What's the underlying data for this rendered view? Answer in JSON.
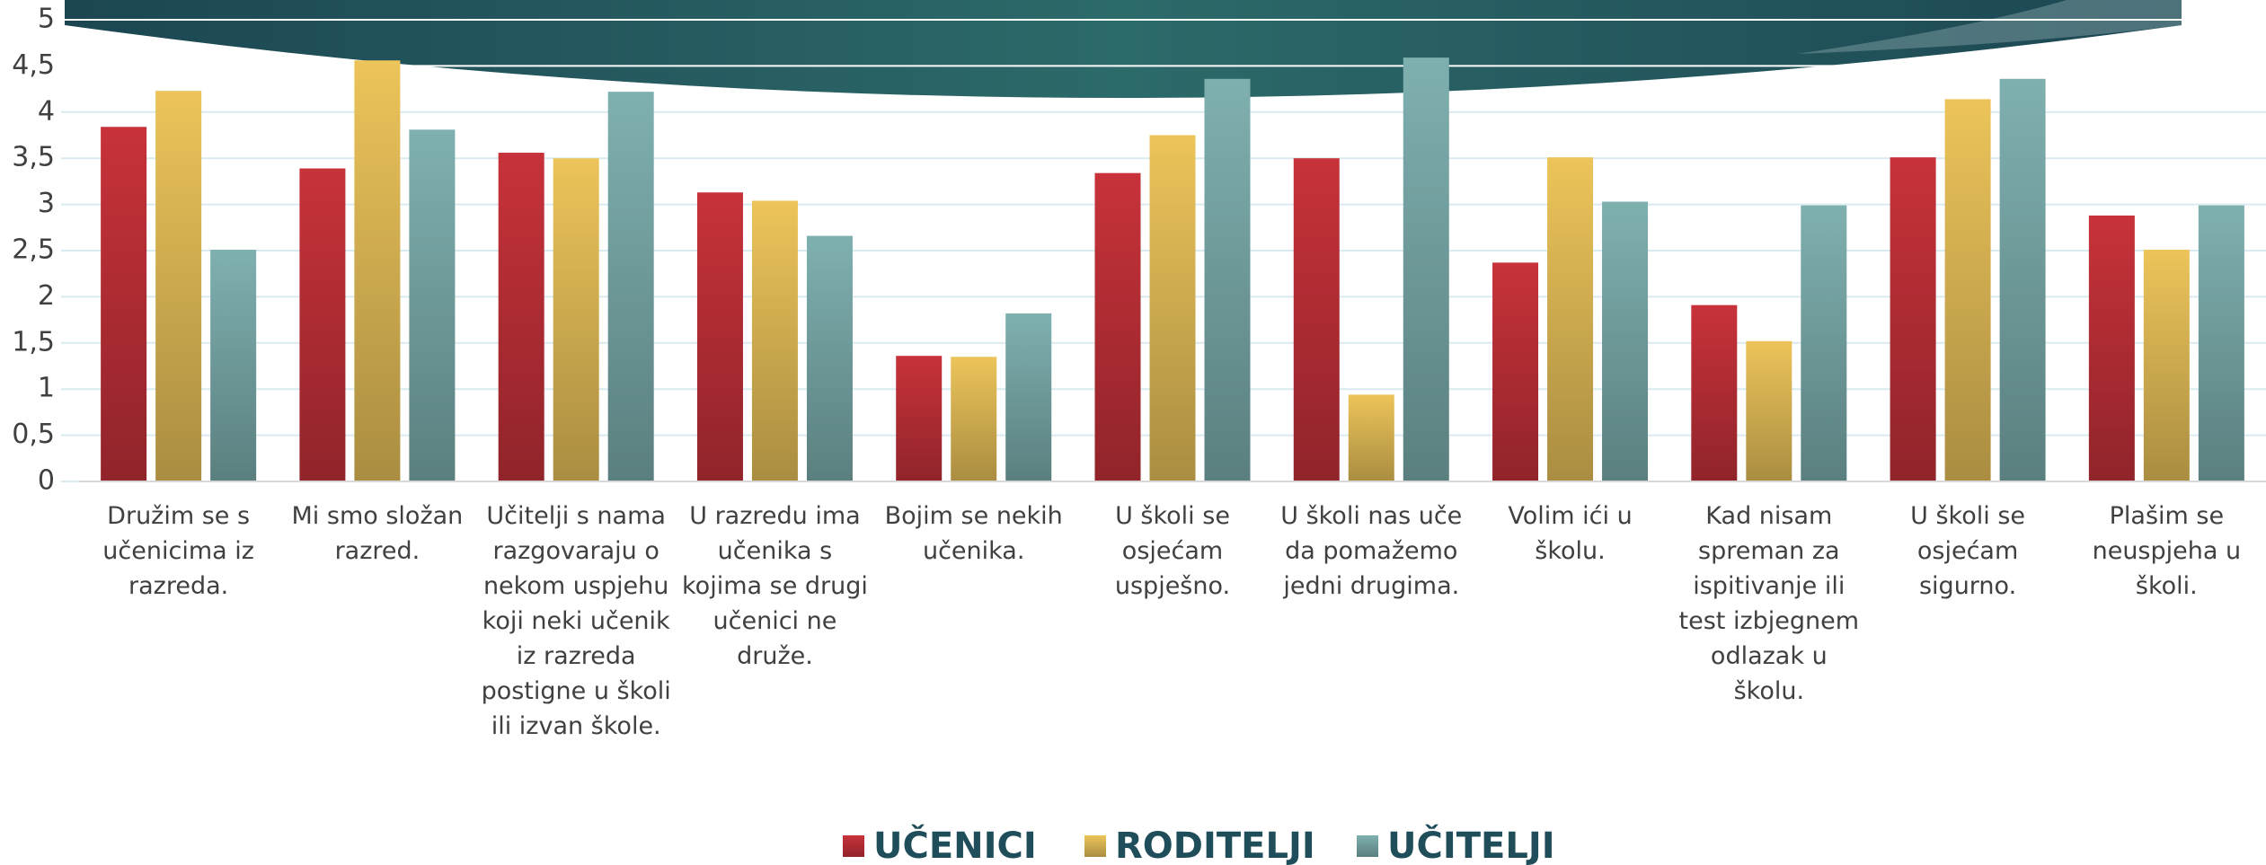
{
  "chart_data": {
    "type": "bar",
    "categories": [
      "Družim se s učenicima iz razreda.",
      "Mi smo složan razred.",
      "Učitelji s nama razgovaraju o nekom uspjehu koji neki učenik iz razreda postigne u školi ili izvan škole.",
      "U razredu ima učenika s kojima se drugi učenici ne druže.",
      "Bojim se nekih učenika.",
      "U školi se osjećam uspješno.",
      "U školi nas uče da pomažemo jedni drugima.",
      "Volim ići u školu.",
      "Kad nisam spreman za ispitivanje ili test izbjegnem odlazak u školu.",
      "U školi se osjećam sigurno.",
      "Plašim se neuspjeha u školi."
    ],
    "series": [
      {
        "name": "UČENICI",
        "color": "#c8323a",
        "values": [
          3.84,
          3.39,
          3.56,
          3.13,
          1.36,
          3.34,
          3.5,
          2.37,
          1.91,
          3.51,
          2.88
        ]
      },
      {
        "name": "RODITELJI",
        "color": "#ecc45a",
        "values": [
          4.23,
          4.56,
          3.5,
          3.04,
          1.35,
          3.75,
          0.94,
          3.51,
          1.52,
          4.14,
          2.51
        ]
      },
      {
        "name": "UČITELJI",
        "color": "#7fb0b0",
        "values": [
          2.51,
          3.81,
          4.22,
          2.66,
          1.82,
          4.36,
          4.59,
          3.03,
          2.99,
          4.36,
          2.99
        ]
      }
    ],
    "ylim": [
      0,
      5
    ],
    "yticks": [
      0,
      {
        "value": 0.5,
        "label": "0,5"
      },
      1,
      {
        "value": 1.5,
        "label": "1,5"
      },
      2,
      {
        "value": 2.5,
        "label": "2,5"
      },
      3,
      {
        "value": 3.5,
        "label": "3,5"
      },
      4,
      {
        "value": 4.5,
        "label": "4,5"
      },
      5
    ],
    "grid": true,
    "legend": "bottom"
  }
}
